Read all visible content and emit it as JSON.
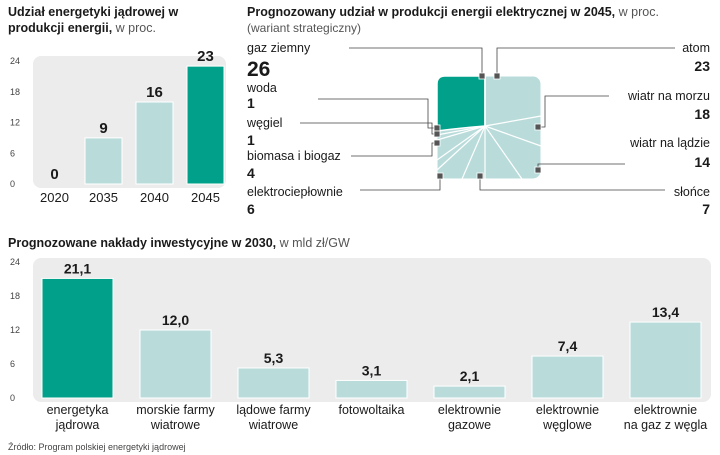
{
  "chart_data": [
    {
      "type": "bar",
      "title": "Udział energetyki jądrowej w produkcji energii,",
      "unit": "w proc.",
      "categories": [
        "2020",
        "2035",
        "2040",
        "2045"
      ],
      "values": [
        0,
        9,
        16,
        23
      ],
      "value_labels": [
        "0",
        "9",
        "16",
        "23"
      ],
      "yticks": [
        "0",
        "6",
        "12",
        "18",
        "24"
      ],
      "ylim": [
        0,
        24
      ],
      "highlight_index": 3
    },
    {
      "type": "treemap",
      "title": "Prognozowany udział w produkcji energii elektrycznej w 2045,",
      "unit": "w proc.",
      "subtitle": "(wariant strategiczny)",
      "slices": [
        {
          "label": "gaz ziemny",
          "value": "26"
        },
        {
          "label": "woda",
          "value": "1"
        },
        {
          "label": "węgiel",
          "value": "1"
        },
        {
          "label": "biomasa i biogaz",
          "value": "4"
        },
        {
          "label": "elektrociepłownie",
          "value": "6"
        },
        {
          "label": "atom",
          "value": "23"
        },
        {
          "label": "wiatr na morzu",
          "value": "18"
        },
        {
          "label": "wiatr na lądzie",
          "value": "14"
        },
        {
          "label": "słońce",
          "value": "7"
        }
      ]
    },
    {
      "type": "bar",
      "title": "Prognozowane nakłady inwestycyjne w 2030,",
      "unit": "w mld zł/GW",
      "categories": [
        [
          "energetyka",
          "jądrowa"
        ],
        [
          "morskie farmy",
          "wiatrowe"
        ],
        [
          "lądowe farmy",
          "wiatrowe"
        ],
        [
          "fotowoltaika"
        ],
        [
          "elektrownie",
          "gazowe"
        ],
        [
          "elektrownie",
          "węglowe"
        ],
        [
          "elektrownie",
          "na gaz z węgla"
        ]
      ],
      "values": [
        21.1,
        12.0,
        5.3,
        3.1,
        2.1,
        7.4,
        13.4
      ],
      "value_labels": [
        "21,1",
        "12,0",
        "5,3",
        "3,1",
        "2,1",
        "7,4",
        "13,4"
      ],
      "yticks": [
        "0",
        "6",
        "12",
        "18",
        "24"
      ],
      "ylim": [
        0,
        24
      ],
      "highlight_index": 0
    }
  ],
  "colors": {
    "highlight": "#00a08a",
    "bar": "#b9dcdb",
    "panel": "#ececec",
    "text": "#1a1a1a"
  },
  "source": "Źródło: Program polskiej energetyki jądrowej"
}
